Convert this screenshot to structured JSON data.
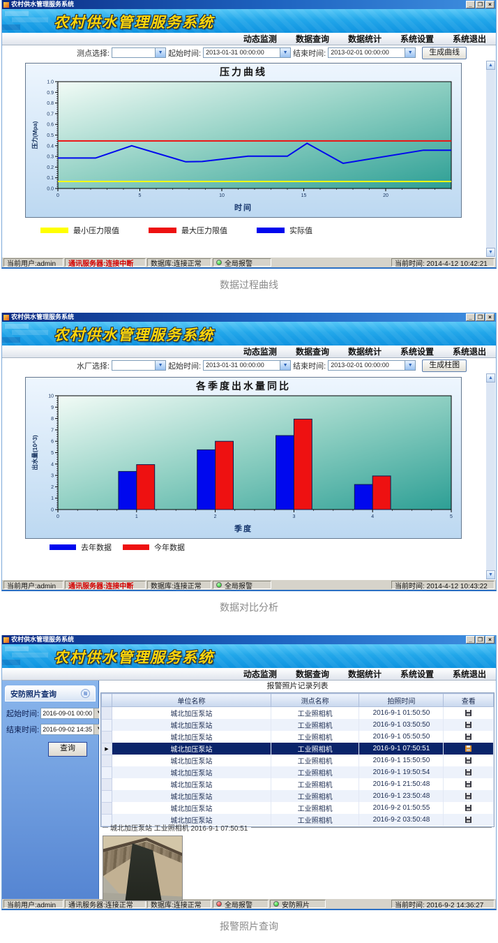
{
  "captions": {
    "w1": "数据过程曲线",
    "w2": "数据对比分析",
    "w3": "报警照片查询"
  },
  "common": {
    "window_title": "农村供水管理服务系统",
    "logo": "农村供水管理服务系统",
    "menu": [
      "动态监测",
      "数据查询",
      "数据统计",
      "系统设置",
      "系统退出"
    ],
    "win_buttons": {
      "minimize": "_",
      "maximize": "❐",
      "close": "×"
    },
    "combo_arrow": "▼",
    "scroll_up": "▲",
    "scroll_down": "▼"
  },
  "w1": {
    "toolbar": {
      "point_label": "测点选择:",
      "point_value": "",
      "start_label": "起始时间:",
      "start_value": "2013-01-31 00:00:00",
      "end_label": "结束时间:",
      "end_value": "2013-02-01 00:00:00",
      "button": "生成曲线"
    },
    "status": {
      "user": "当前用户:admin",
      "comm": "通讯服务器:连接中断",
      "db": "数据库:连接正常",
      "alarm": "全局报警",
      "time": "当前时间: 2014-4-12 10:42:21"
    }
  },
  "w2": {
    "toolbar": {
      "point_label": "水厂选择:",
      "point_value": "",
      "start_label": "起始时间:",
      "start_value": "2013-01-31 00:00:00",
      "end_label": "结束时间:",
      "end_value": "2013-02-01 00:00:00",
      "button": "生成柱图"
    },
    "status": {
      "user": "当前用户:admin",
      "comm": "通讯服务器:连接中断",
      "db": "数据库:连接正常",
      "alarm": "全局报警",
      "time": "当前时间: 2014-4-12 10:43:22"
    }
  },
  "w3": {
    "sidebar": {
      "title": "安防照片查询",
      "collapse_icon": "≋",
      "start_label": "起始时间:",
      "start_value": "2016-09-01 00:00",
      "end_label": "结束时间:",
      "end_value": "2016-09-02 14:35",
      "query_button": "查询"
    },
    "list_title": "报警照片记录列表",
    "table": {
      "headers": [
        "单位名称",
        "测点名称",
        "拍照时间",
        "查看"
      ],
      "selected_index": 3,
      "rows": [
        [
          "城北加压泵站",
          "工业照相机",
          "2016-9-1 01:50:50"
        ],
        [
          "城北加压泵站",
          "工业照相机",
          "2016-9-1 03:50:50"
        ],
        [
          "城北加压泵站",
          "工业照相机",
          "2016-9-1 05:50:50"
        ],
        [
          "城北加压泵站",
          "工业照相机",
          "2016-9-1 07:50:51"
        ],
        [
          "城北加压泵站",
          "工业照相机",
          "2016-9-1 15:50:50"
        ],
        [
          "城北加压泵站",
          "工业照相机",
          "2016-9-1 19:50:54"
        ],
        [
          "城北加压泵站",
          "工业照相机",
          "2016-9-1 21:50:48"
        ],
        [
          "城北加压泵站",
          "工业照相机",
          "2016-9-1 23:50:48"
        ],
        [
          "城北加压泵站",
          "工业照相机",
          "2016-9-2 01:50:55"
        ],
        [
          "城北加压泵站",
          "工业照相机",
          "2016-9-2 03:50:48"
        ]
      ]
    },
    "photo_label": "城北加压泵站 工业照相机 2016-9-1 07:50:51",
    "status": {
      "user": "当前用户:admin",
      "comm": "通讯服务器:连接正常",
      "db": "数据库:连接正常",
      "alarm": "全局报警",
      "photo": "安防照片",
      "time": "当前时间: 2016-9-2 14:36:27"
    }
  },
  "chart_data": [
    {
      "type": "line",
      "title": "压力曲线",
      "xlabel": "时间",
      "ylabel": "压力(Mpa)",
      "xlim": [
        0,
        24
      ],
      "ylim": [
        0,
        1
      ],
      "xticks": [
        0,
        5,
        10,
        15,
        20
      ],
      "yticks": [
        0,
        0.1,
        0.2,
        0.3,
        0.4,
        0.5,
        0.6,
        0.7,
        0.8,
        0.9,
        1.0
      ],
      "grid": false,
      "legend_position": "bottom",
      "plot_bg": [
        "#f2fbf6",
        "#8ecfc2",
        "#2d9f95"
      ],
      "series": [
        {
          "name": "实际值",
          "color": "#0008ee",
          "points": [
            [
              0,
              0.285
            ],
            [
              2.3,
              0.285
            ],
            [
              4.5,
              0.4
            ],
            [
              7.8,
              0.25
            ],
            [
              8.8,
              0.252
            ],
            [
              11.6,
              0.302
            ],
            [
              14,
              0.302
            ],
            [
              15.2,
              0.423
            ],
            [
              17.4,
              0.235
            ],
            [
              22.3,
              0.358
            ],
            [
              24,
              0.358
            ]
          ]
        }
      ],
      "limit_lines": [
        {
          "name": "最小压力限值",
          "color": "#ffff00",
          "value": 0.065
        },
        {
          "name": "最大压力限值",
          "color": "#ee1111",
          "value": 0.445
        }
      ]
    },
    {
      "type": "bar",
      "title": "各季度出水量同比",
      "xlabel": "季度",
      "ylabel": "出水量(10^3)",
      "xlim": [
        0,
        5
      ],
      "ylim": [
        0,
        10
      ],
      "xticks": [
        0,
        1,
        2,
        3,
        4,
        5
      ],
      "yticks": [
        0,
        1,
        2,
        3,
        4,
        5,
        6,
        7,
        8,
        9,
        10
      ],
      "grid": false,
      "legend_position": "bottom",
      "plot_bg": [
        "#f2fbf6",
        "#8ecfc2",
        "#2d9f95"
      ],
      "categories": [
        1,
        2,
        3,
        4
      ],
      "series": [
        {
          "name": "去年数据",
          "color": "#0008ee",
          "values": [
            3.35,
            5.25,
            6.5,
            2.2
          ]
        },
        {
          "name": "今年数据",
          "color": "#ee1111",
          "values": [
            3.95,
            6.0,
            7.95,
            2.95
          ]
        }
      ]
    }
  ]
}
